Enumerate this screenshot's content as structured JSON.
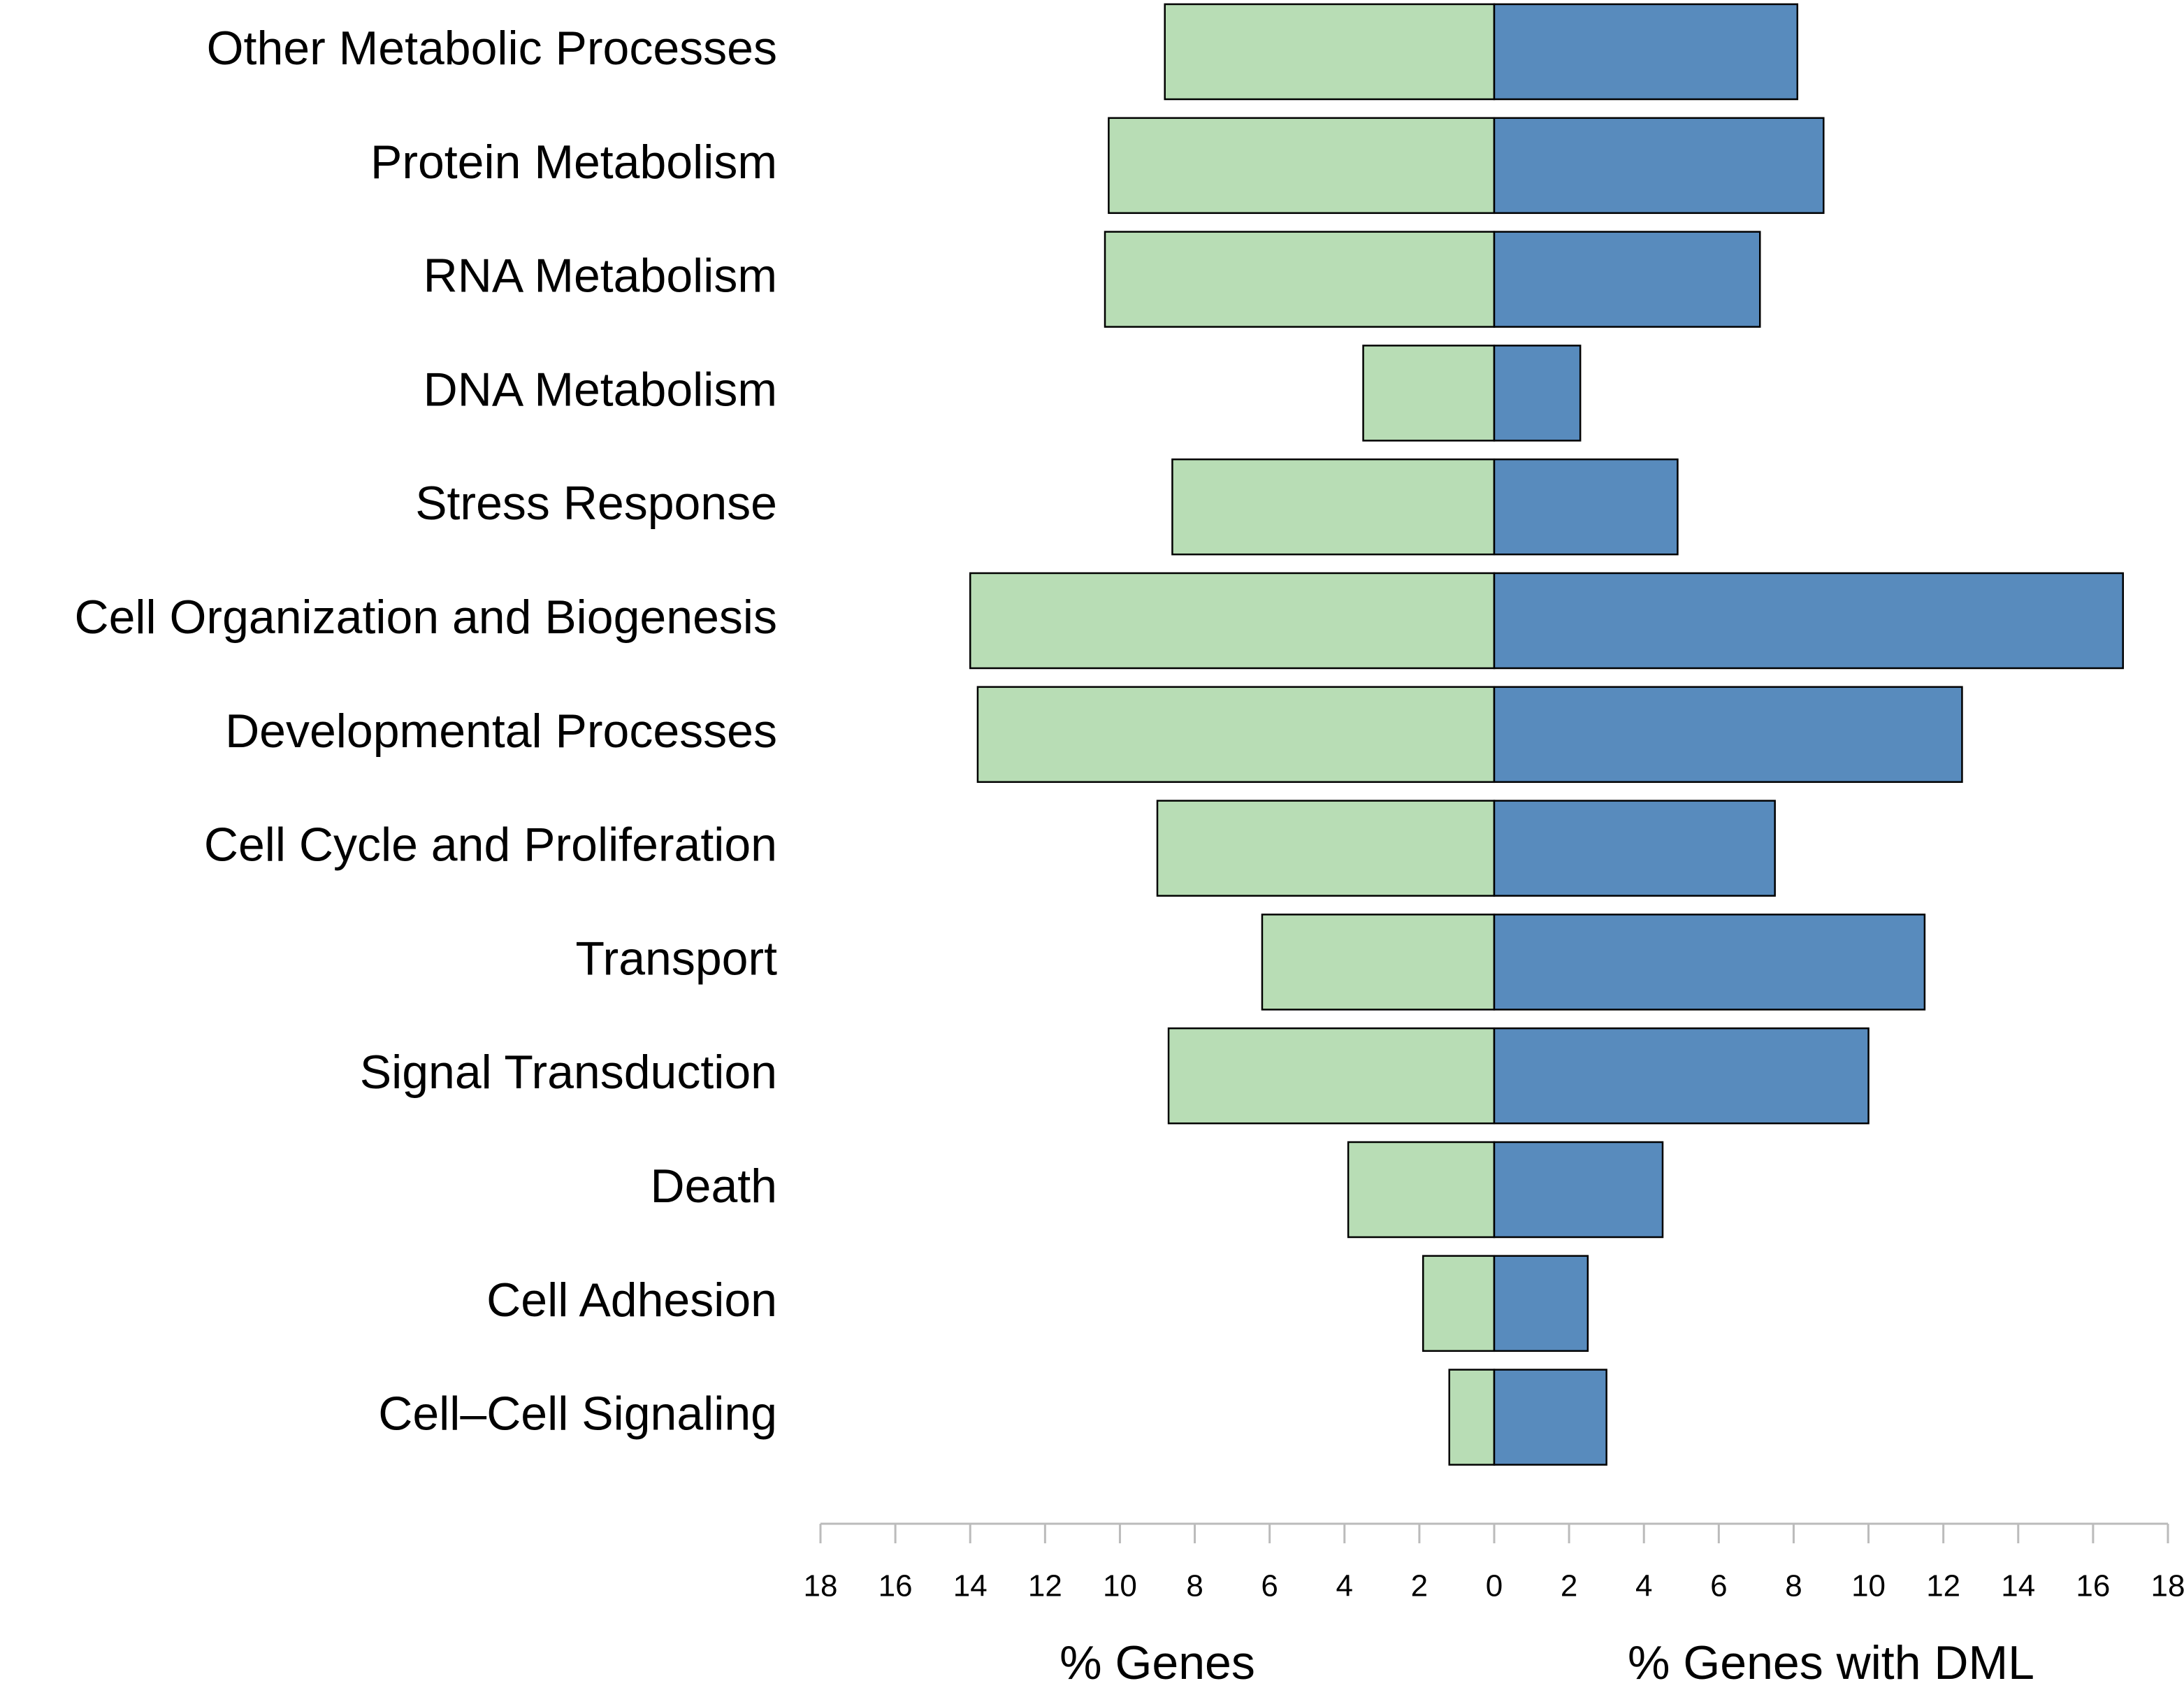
{
  "chart_data": {
    "type": "butterfly_bar",
    "categories": [
      "Other Metabolic Processes",
      "Protein Metabolism",
      "RNA Metabolism",
      "DNA Metabolism",
      "Stress Response",
      "Cell Organization and Biogenesis",
      "Developmental Processes",
      "Cell Cycle and Proliferation",
      "Transport",
      "Signal Transduction",
      "Death",
      "Cell Adhesion",
      "Cell–Cell Signaling"
    ],
    "series": [
      {
        "name": "% Genes",
        "color": "#b8ddb5",
        "side": "left",
        "values": [
          8.8,
          10.3,
          10.4,
          3.5,
          8.6,
          14.0,
          13.8,
          9.0,
          6.2,
          8.7,
          3.9,
          1.9,
          1.2
        ]
      },
      {
        "name": "% Genes with DML",
        "color": "#588bbd",
        "side": "right",
        "values": [
          8.1,
          8.8,
          7.1,
          2.3,
          4.9,
          16.8,
          12.5,
          7.5,
          11.5,
          10.0,
          4.5,
          2.5,
          3.0
        ]
      }
    ],
    "xlim": [
      0,
      18
    ],
    "xticks": [
      0,
      2,
      4,
      6,
      8,
      10,
      12,
      14,
      16,
      18
    ]
  }
}
